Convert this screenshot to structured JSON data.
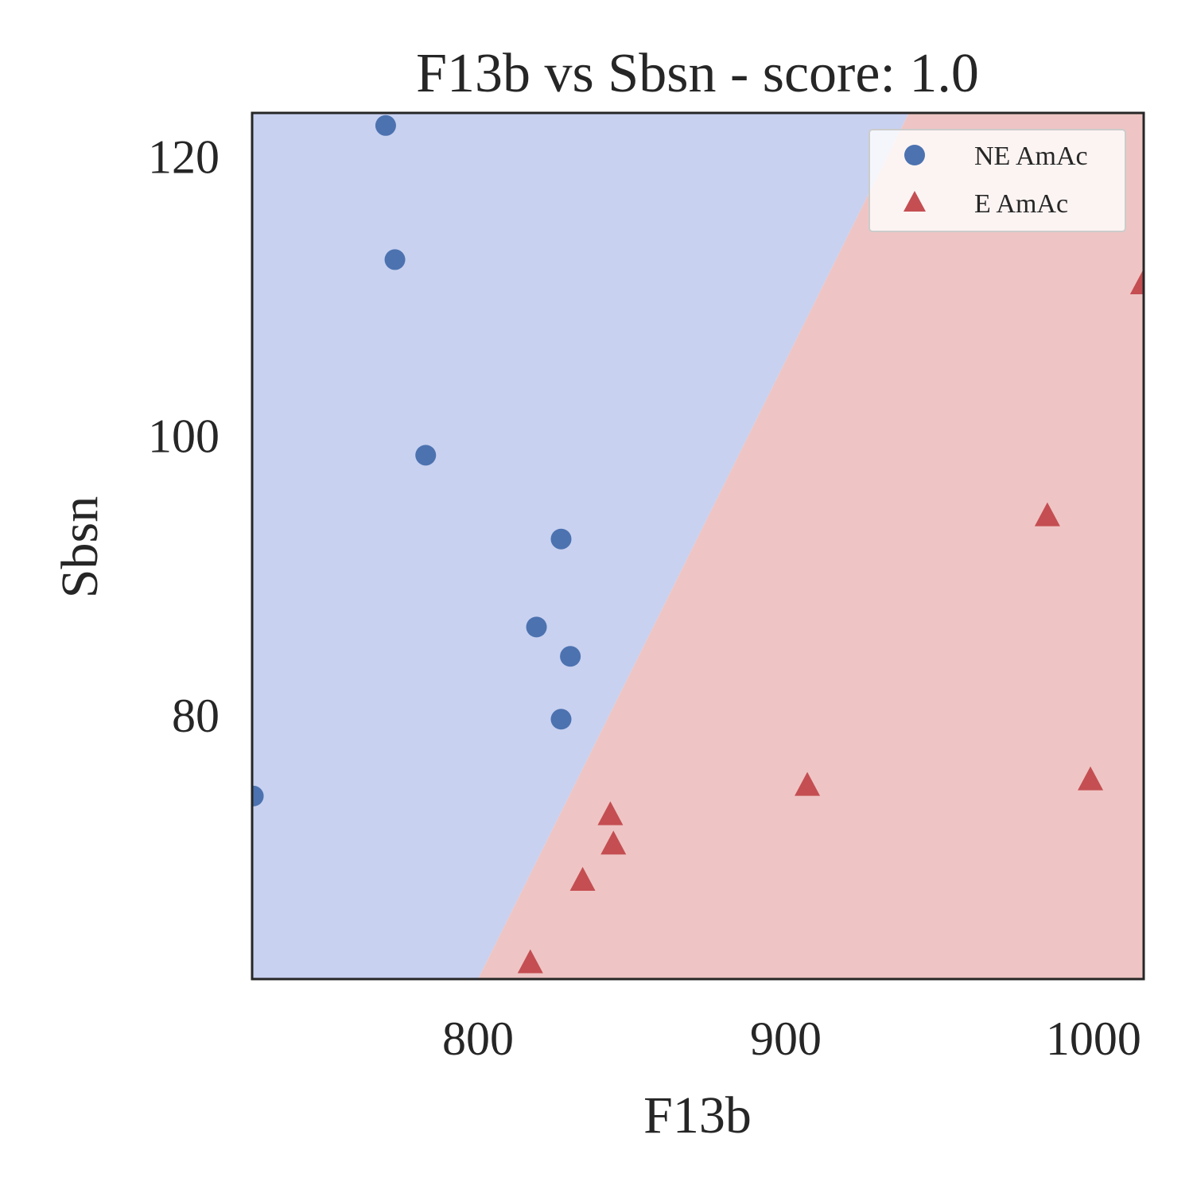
{
  "chart_data": {
    "type": "scatter",
    "title": "F13b vs Sbsn - score: 1.0",
    "xlabel": "F13b",
    "ylabel": "Sbsn",
    "xlim": [
      726.6,
      1016.3
    ],
    "ylim": [
      61.1,
      123.1
    ],
    "xticks": [
      800,
      900,
      1000
    ],
    "yticks": [
      80,
      100,
      120
    ],
    "grid": false,
    "legend_position": "top-right",
    "decision_boundary": {
      "points": [
        [
          800.0,
          61.1
        ],
        [
          940.0,
          123.1
        ]
      ],
      "left_class": "NE AmAc",
      "right_class": "E AmAc"
    },
    "region_colors": {
      "NE AmAc": "#c8d1f0",
      "E AmAc": "#eec5c4"
    },
    "series": [
      {
        "name": "NE AmAc",
        "marker": "circle",
        "color": "#4c72b0",
        "points": [
          [
            770,
            122.2
          ],
          [
            773,
            112.6
          ],
          [
            783,
            98.6
          ],
          [
            827,
            92.6
          ],
          [
            819,
            86.3
          ],
          [
            830,
            84.2
          ],
          [
            827,
            79.7
          ],
          [
            727,
            74.2
          ]
        ]
      },
      {
        "name": "E AmAc",
        "marker": "triangle",
        "color": "#c44e52",
        "points": [
          [
            1016,
            110.8
          ],
          [
            985,
            94.2
          ],
          [
            999,
            75.3
          ],
          [
            907,
            74.9
          ],
          [
            843,
            72.8
          ],
          [
            844,
            70.7
          ],
          [
            834,
            68.1
          ],
          [
            817,
            62.2
          ]
        ]
      }
    ]
  }
}
